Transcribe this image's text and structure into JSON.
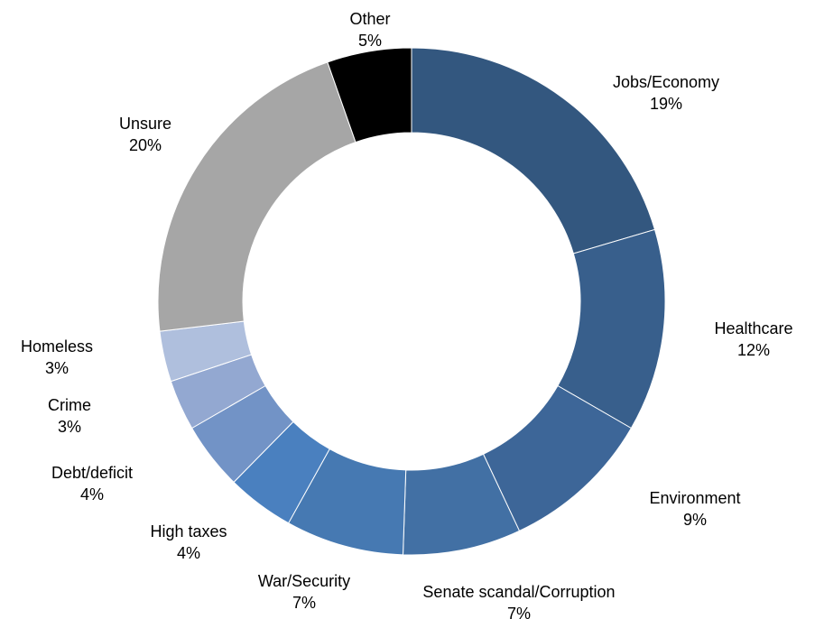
{
  "chart_data": {
    "type": "pie",
    "donut": true,
    "start": "top, clockwise",
    "slices": [
      {
        "label": "Jobs/Economy",
        "value": 19,
        "value_label": "19%",
        "color": "#33577f"
      },
      {
        "label": "Healthcare",
        "value": 12,
        "value_label": "12%",
        "color": "#385f8c"
      },
      {
        "label": "Environment",
        "value": 9,
        "value_label": "9%",
        "color": "#3d6698"
      },
      {
        "label": "Senate scandal/Corruption",
        "value": 7,
        "value_label": "7%",
        "color": "#4270a4"
      },
      {
        "label": "War/Security",
        "value": 7,
        "value_label": "7%",
        "color": "#4679b2"
      },
      {
        "label": "High taxes",
        "value": 4,
        "value_label": "4%",
        "color": "#4a80bf"
      },
      {
        "label": "Debt/deficit",
        "value": 4,
        "value_label": "4%",
        "color": "#7293c6"
      },
      {
        "label": "Crime",
        "value": 3,
        "value_label": "3%",
        "color": "#93a8d1"
      },
      {
        "label": "Homeless",
        "value": 3,
        "value_label": "3%",
        "color": "#afbfdd"
      },
      {
        "label": "Unsure",
        "value": 20,
        "value_label": "20%",
        "color": "#a6a6a6"
      },
      {
        "label": "Other",
        "value": 5,
        "value_label": "5%",
        "color": "#000000"
      }
    ]
  }
}
